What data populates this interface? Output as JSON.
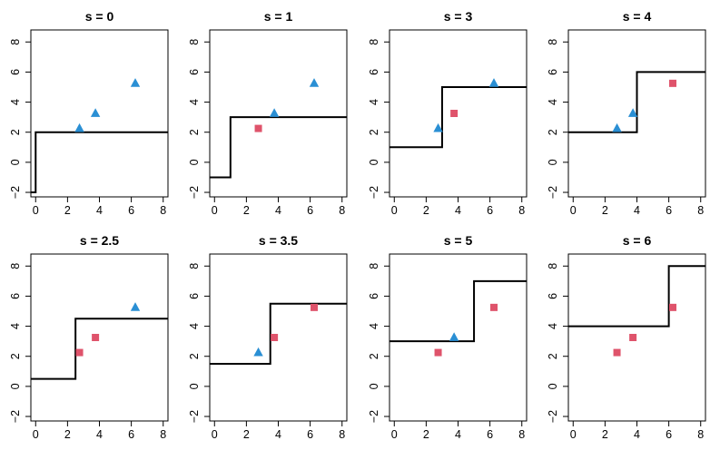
{
  "colors": {
    "triangle": "#2a8fd4",
    "square": "#df536b",
    "step": "#000000"
  },
  "chart_data": [
    {
      "type": "scatter",
      "title": "s = 0",
      "s": 0,
      "xlim": [
        -0.3,
        8.3
      ],
      "ylim": [
        -2.3,
        8.8
      ],
      "xticks": [
        0,
        2,
        4,
        6,
        8
      ],
      "yticks": [
        -2,
        0,
        2,
        4,
        6,
        8
      ],
      "points": [
        {
          "x": 2.75,
          "y": 2.25,
          "marker": "triangle"
        },
        {
          "x": 3.75,
          "y": 3.25,
          "marker": "triangle"
        },
        {
          "x": 6.25,
          "y": 5.25,
          "marker": "triangle"
        }
      ],
      "step": [
        [
          -0.3,
          -2
        ],
        [
          0,
          -2
        ],
        [
          0,
          2
        ],
        [
          8.3,
          2
        ]
      ]
    },
    {
      "type": "scatter",
      "title": "s = 1",
      "s": 1,
      "xlim": [
        -0.3,
        8.3
      ],
      "ylim": [
        -2.3,
        8.8
      ],
      "xticks": [
        0,
        2,
        4,
        6,
        8
      ],
      "yticks": [
        -2,
        0,
        2,
        4,
        6,
        8
      ],
      "points": [
        {
          "x": 2.75,
          "y": 2.25,
          "marker": "square"
        },
        {
          "x": 3.75,
          "y": 3.25,
          "marker": "triangle"
        },
        {
          "x": 6.25,
          "y": 5.25,
          "marker": "triangle"
        }
      ],
      "step": [
        [
          -0.3,
          -1
        ],
        [
          1,
          -1
        ],
        [
          1,
          3
        ],
        [
          8.3,
          3
        ]
      ]
    },
    {
      "type": "scatter",
      "title": "s = 3",
      "s": 3,
      "xlim": [
        -0.3,
        8.3
      ],
      "ylim": [
        -2.3,
        8.8
      ],
      "xticks": [
        0,
        2,
        4,
        6,
        8
      ],
      "yticks": [
        -2,
        0,
        2,
        4,
        6,
        8
      ],
      "points": [
        {
          "x": 2.75,
          "y": 2.25,
          "marker": "triangle"
        },
        {
          "x": 3.75,
          "y": 3.25,
          "marker": "square"
        },
        {
          "x": 6.25,
          "y": 5.25,
          "marker": "triangle"
        }
      ],
      "step": [
        [
          -0.3,
          1
        ],
        [
          3,
          1
        ],
        [
          3,
          5
        ],
        [
          8.3,
          5
        ]
      ]
    },
    {
      "type": "scatter",
      "title": "s = 4",
      "s": 4,
      "xlim": [
        -0.3,
        8.3
      ],
      "ylim": [
        -2.3,
        8.8
      ],
      "xticks": [
        0,
        2,
        4,
        6,
        8
      ],
      "yticks": [
        -2,
        0,
        2,
        4,
        6,
        8
      ],
      "points": [
        {
          "x": 2.75,
          "y": 2.25,
          "marker": "triangle"
        },
        {
          "x": 3.75,
          "y": 3.25,
          "marker": "triangle"
        },
        {
          "x": 6.25,
          "y": 5.25,
          "marker": "square"
        }
      ],
      "step": [
        [
          -0.3,
          2
        ],
        [
          4,
          2
        ],
        [
          4,
          6
        ],
        [
          8.3,
          6
        ]
      ]
    },
    {
      "type": "scatter",
      "title": "s = 2.5",
      "s": 2.5,
      "xlim": [
        -0.3,
        8.3
      ],
      "ylim": [
        -2.3,
        8.8
      ],
      "xticks": [
        0,
        2,
        4,
        6,
        8
      ],
      "yticks": [
        -2,
        0,
        2,
        4,
        6,
        8
      ],
      "points": [
        {
          "x": 2.75,
          "y": 2.25,
          "marker": "square"
        },
        {
          "x": 3.75,
          "y": 3.25,
          "marker": "square"
        },
        {
          "x": 6.25,
          "y": 5.25,
          "marker": "triangle"
        }
      ],
      "step": [
        [
          -0.3,
          0.5
        ],
        [
          2.5,
          0.5
        ],
        [
          2.5,
          4.5
        ],
        [
          8.3,
          4.5
        ]
      ]
    },
    {
      "type": "scatter",
      "title": "s = 3.5",
      "s": 3.5,
      "xlim": [
        -0.3,
        8.3
      ],
      "ylim": [
        -2.3,
        8.8
      ],
      "xticks": [
        0,
        2,
        4,
        6,
        8
      ],
      "yticks": [
        -2,
        0,
        2,
        4,
        6,
        8
      ],
      "points": [
        {
          "x": 2.75,
          "y": 2.25,
          "marker": "triangle"
        },
        {
          "x": 3.75,
          "y": 3.25,
          "marker": "square"
        },
        {
          "x": 6.25,
          "y": 5.25,
          "marker": "square"
        }
      ],
      "step": [
        [
          -0.3,
          1.5
        ],
        [
          3.5,
          1.5
        ],
        [
          3.5,
          5.5
        ],
        [
          8.3,
          5.5
        ]
      ]
    },
    {
      "type": "scatter",
      "title": "s = 5",
      "s": 5,
      "xlim": [
        -0.3,
        8.3
      ],
      "ylim": [
        -2.3,
        8.8
      ],
      "xticks": [
        0,
        2,
        4,
        6,
        8
      ],
      "yticks": [
        -2,
        0,
        2,
        4,
        6,
        8
      ],
      "points": [
        {
          "x": 2.75,
          "y": 2.25,
          "marker": "square"
        },
        {
          "x": 3.75,
          "y": 3.25,
          "marker": "triangle"
        },
        {
          "x": 6.25,
          "y": 5.25,
          "marker": "square"
        }
      ],
      "step": [
        [
          -0.3,
          3
        ],
        [
          5,
          3
        ],
        [
          5,
          7
        ],
        [
          8.3,
          7
        ]
      ]
    },
    {
      "type": "scatter",
      "title": "s = 6",
      "s": 6,
      "xlim": [
        -0.3,
        8.3
      ],
      "ylim": [
        -2.3,
        8.8
      ],
      "xticks": [
        0,
        2,
        4,
        6,
        8
      ],
      "yticks": [
        -2,
        0,
        2,
        4,
        6,
        8
      ],
      "points": [
        {
          "x": 2.75,
          "y": 2.25,
          "marker": "square"
        },
        {
          "x": 3.75,
          "y": 3.25,
          "marker": "square"
        },
        {
          "x": 6.25,
          "y": 5.25,
          "marker": "square"
        }
      ],
      "step": [
        [
          -0.3,
          4
        ],
        [
          6,
          4
        ],
        [
          6,
          8
        ],
        [
          8.3,
          8
        ]
      ]
    }
  ]
}
